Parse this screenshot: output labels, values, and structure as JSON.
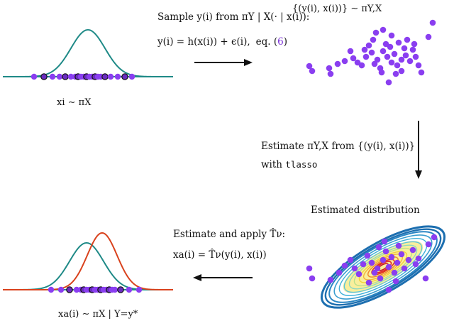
{
  "top_right_label": "{(y(i), x(i))} ∼ πY,X",
  "prior_label": "xi ∼ πX",
  "sample_step": {
    "line1": "Sample y(i) from πY | X(· | x(i)):",
    "line2_eq": "y(i) = h(x(i)) + ϵ(i),",
    "line2_ref_prefix": "eq. (",
    "line2_ref_num": "6",
    "line2_ref_suffix": ")"
  },
  "estimate_step": {
    "line1": "Estimate πY,X from {(y(i), x(i))}",
    "line2_prefix": "with ",
    "line2_code": "tlasso"
  },
  "estimated_label": "Estimated distribution",
  "apply_step": {
    "line1": "Estimate and apply T̂ν:",
    "line2": "xa(i) = T̂ν(y(i), x(i))"
  },
  "posterior_label": "xa(i) ∼ πX | Y=y*",
  "colors": {
    "teal": "#1f8a87",
    "red": "#d9421d",
    "purple": "#8a3ef0",
    "black": "#111111",
    "contour_outer": "#1d6fb0",
    "contour_mid": "#3fb0d8",
    "contour_inner": "#f2d23a",
    "contour_core": "#e0341b"
  }
}
